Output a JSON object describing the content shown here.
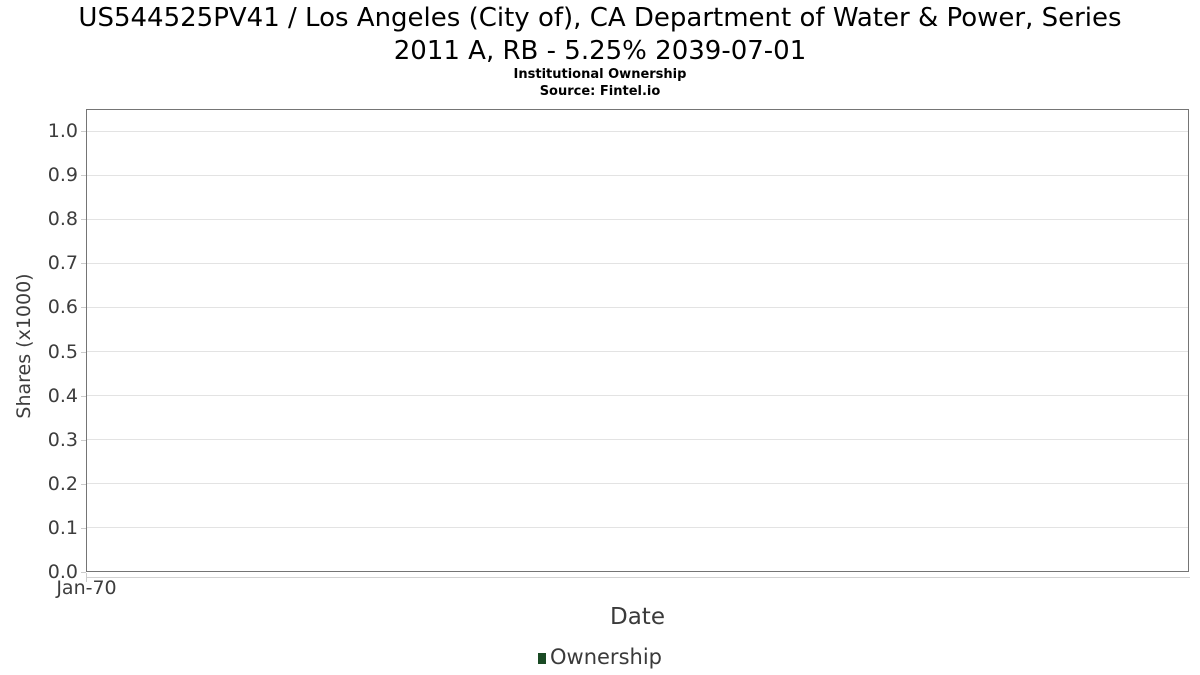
{
  "header": {
    "title": "US544525PV41 / Los Angeles (City of), CA Department of Water & Power, Series 2011 A, RB - 5.25% 2039-07-01",
    "title_lines": [
      "US544525PV41 / Los Angeles (City of), CA Department of Water & Power, Series",
      "2011 A, RB - 5.25% 2039-07-01"
    ],
    "subtitle": "Institutional Ownership",
    "source": "Source: Fintel.io"
  },
  "chart_data": {
    "type": "line",
    "title": "US544525PV41 / Los Angeles (City of), CA Department of Water & Power, Series 2011 A, RB - 5.25% 2039-07-01",
    "subtitle": "Institutional Ownership",
    "source": "Source: Fintel.io",
    "xlabel": "Date",
    "ylabel": "Shares (x1000)",
    "xticks": [
      "Jan-70"
    ],
    "yticks": [
      "0.0",
      "0.1",
      "0.2",
      "0.3",
      "0.4",
      "0.5",
      "0.6",
      "0.7",
      "0.8",
      "0.9",
      "1.0"
    ],
    "ylim": [
      0.0,
      1.05
    ],
    "grid": true,
    "legend_position": "bottom",
    "legend": [
      {
        "label": "Ownership",
        "color": "#1a4a24"
      }
    ],
    "series": [
      {
        "name": "Ownership",
        "x": [],
        "values": []
      }
    ]
  },
  "colors": {
    "plot_border": "#757575",
    "gridline": "#e3e3e3",
    "tick": "#cccccc",
    "axis_text": "#3d3d3d",
    "title_text": "#000000",
    "legend_green": "#1a4a24"
  }
}
